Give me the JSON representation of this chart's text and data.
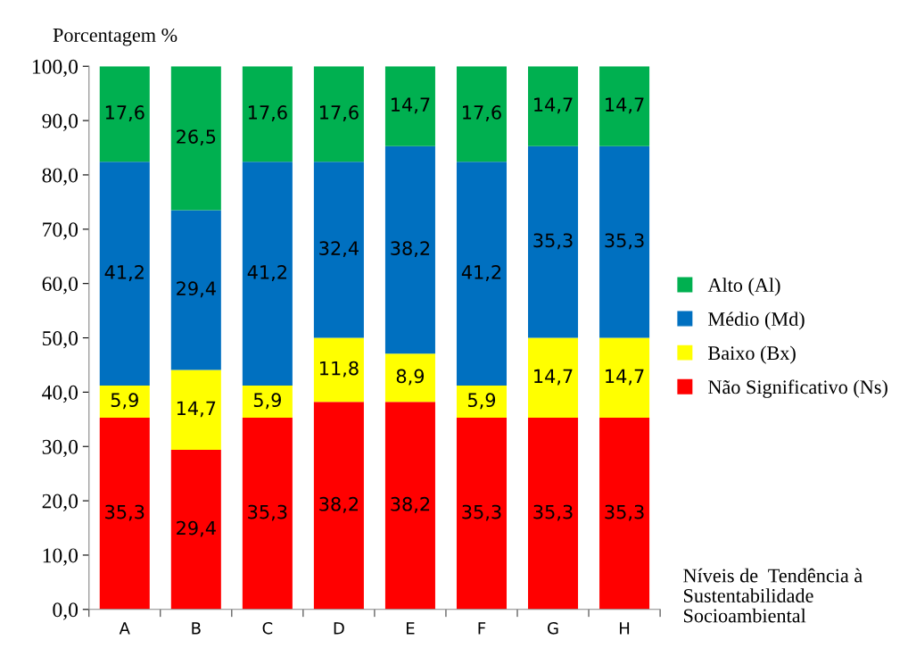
{
  "chart_data": {
    "type": "bar",
    "stacked": true,
    "ylabel": "Porcentagem %",
    "xlabel": "Níveis de  Tendência à\nSustentabilidade\nSocioambiental",
    "categories": [
      "A",
      "B",
      "C",
      "D",
      "E",
      "F",
      "G",
      "H"
    ],
    "series": [
      {
        "name": "Não Significativo (Ns)",
        "color": "#ff0000",
        "values": [
          35.3,
          29.4,
          35.3,
          38.2,
          38.2,
          35.3,
          35.3,
          35.3
        ],
        "value_labels": [
          "35,3",
          "29,4",
          "35,3",
          "38,2",
          "38,2",
          "35,3",
          "35,3",
          "35,3"
        ]
      },
      {
        "name": "Baixo (Bx)",
        "color": "#ffff00",
        "values": [
          5.9,
          14.7,
          5.9,
          11.8,
          8.9,
          5.9,
          14.7,
          14.7
        ],
        "value_labels": [
          "5,9",
          "14,7",
          "5,9",
          "11,8",
          "8,9",
          "5,9",
          "14,7",
          "14,7"
        ]
      },
      {
        "name": "Médio (Md)",
        "color": "#0070c0",
        "values": [
          41.2,
          29.4,
          41.2,
          32.4,
          38.2,
          41.2,
          35.3,
          35.3
        ],
        "value_labels": [
          "41,2",
          "29,4",
          "41,2",
          "32,4",
          "38,2",
          "41,2",
          "35,3",
          "35,3"
        ]
      },
      {
        "name": "Alto (Al)",
        "color": "#00b050",
        "values": [
          17.6,
          26.5,
          17.6,
          17.6,
          14.7,
          17.6,
          14.7,
          14.7
        ],
        "value_labels": [
          "17,6",
          "26,5",
          "17,6",
          "17,6",
          "14,7",
          "17,6",
          "14,7",
          "14,7"
        ]
      }
    ],
    "ylim": [
      0,
      100
    ],
    "yticks": [
      {
        "value": 0,
        "label": "0,0"
      },
      {
        "value": 10,
        "label": "10,0"
      },
      {
        "value": 20,
        "label": "20,0"
      },
      {
        "value": 30,
        "label": "30,0"
      },
      {
        "value": 40,
        "label": "40,0"
      },
      {
        "value": 50,
        "label": "50,0"
      },
      {
        "value": 60,
        "label": "60,0"
      },
      {
        "value": 70,
        "label": "70,0"
      },
      {
        "value": 80,
        "label": "80,0"
      },
      {
        "value": 90,
        "label": "90,0"
      },
      {
        "value": 100,
        "label": "100,0"
      }
    ],
    "legend": "right",
    "grid": false
  }
}
